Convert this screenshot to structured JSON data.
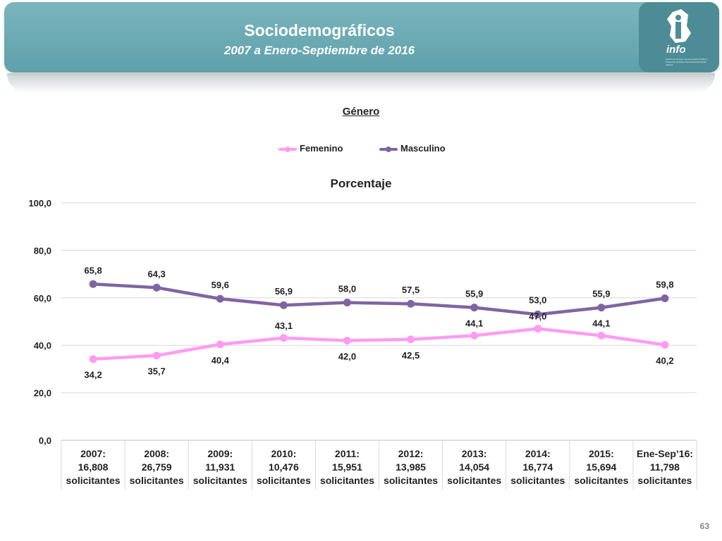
{
  "header": {
    "title": "Sociodemográficos",
    "subtitle": "2007 a Enero-Septiembre de 2016",
    "logo_text": "info",
    "logo_small": "Instituto de Acceso a la Información Pública y Protección de Datos Personales del Distrito Federal"
  },
  "section_title": "Género",
  "page_number": "63",
  "colors": {
    "femenino": "#ff9cf2",
    "masculino": "#8064a2",
    "header": "#6aaab3"
  },
  "chart_data": {
    "type": "line",
    "title": "Porcentaje",
    "categories": [
      [
        "2007:",
        "16,808",
        "solicitantes"
      ],
      [
        "2008:",
        "26,759",
        "solicitantes"
      ],
      [
        "2009:",
        "11,931",
        "solicitantes"
      ],
      [
        "2010:",
        "10,476",
        "solicitantes"
      ],
      [
        "2011:",
        "15,951",
        "solicitantes"
      ],
      [
        "2012:",
        "13,985",
        "solicitantes"
      ],
      [
        "2013:",
        "14,054",
        "solicitantes"
      ],
      [
        "2014:",
        "16,774",
        "solicitantes"
      ],
      [
        "2015:",
        "15,694",
        "solicitantes"
      ],
      [
        "Ene-Sep’16:",
        "11,798",
        "solicitantes"
      ]
    ],
    "series": [
      {
        "name": "Femenino",
        "values": [
          34.2,
          35.7,
          40.4,
          43.1,
          42.0,
          42.5,
          44.1,
          47.0,
          44.1,
          40.2
        ],
        "labels": [
          "34,2",
          "35,7",
          "40,4",
          "43,1",
          "42,0",
          "42,5",
          "44,1",
          "47,0",
          "44,1",
          "40,2"
        ]
      },
      {
        "name": "Masculino",
        "values": [
          65.8,
          64.3,
          59.6,
          56.9,
          58.0,
          57.5,
          55.9,
          53.0,
          55.9,
          59.8
        ],
        "labels": [
          "65,8",
          "64,3",
          "59,6",
          "56,9",
          "58,0",
          "57,5",
          "55,9",
          "53,0",
          "55,9",
          "59,8"
        ]
      }
    ],
    "ylim": [
      0,
      100
    ],
    "yticks": [
      "0,0",
      "20,0",
      "40,0",
      "60,0",
      "80,0",
      "100,0"
    ],
    "grid": true,
    "legend_position": "top"
  }
}
